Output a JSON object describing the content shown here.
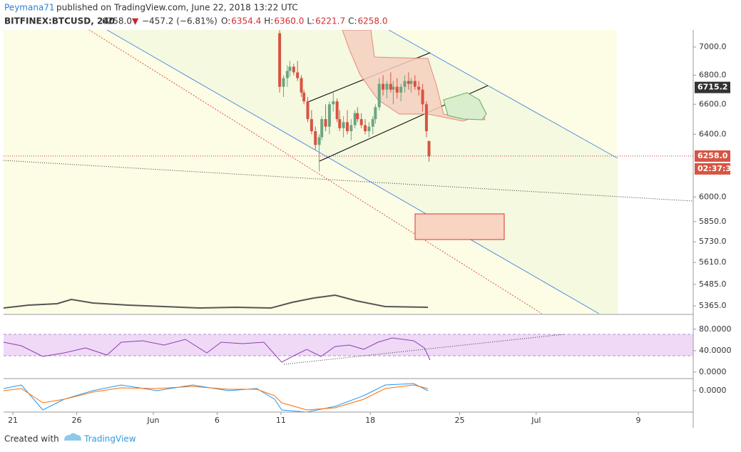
{
  "header": {
    "author": "Peymana71",
    "published": "published on TradingView.com, June 22, 2018 13:22 UTC",
    "symbol": "BITFINEX:BTCUSD, 240",
    "last": "6258.0",
    "arrow": "▼",
    "change": "−457.2 (−6.81%)",
    "ohlc": [
      {
        "key": "O:",
        "val": "6354.4"
      },
      {
        "key": "H:",
        "val": "6360.0"
      },
      {
        "key": "L:",
        "val": "6221.7"
      },
      {
        "key": "C:",
        "val": "6258.0"
      }
    ]
  },
  "chart_data": {
    "type": "candlestick",
    "log_scale": true,
    "up_color": "#6ba583",
    "down_color": "#d75442",
    "x": [
      20.9,
      21.2,
      21.5,
      21.7,
      22.0,
      22.3,
      22.6,
      22.8,
      23.1,
      23.4,
      23.7,
      24.0,
      24.2,
      24.5,
      24.8,
      25.1,
      25.4,
      25.6,
      25.9,
      26.2,
      26.5,
      26.8,
      27.0,
      27.3,
      27.6,
      27.9,
      28.2,
      28.4,
      28.7,
      29.0,
      29.3,
      29.6,
      29.8,
      30.1,
      30.4,
      30.7,
      31.0,
      31.2,
      31.5,
      31.8,
      32.1,
      32.4,
      32.6
    ],
    "open": [
      7100,
      6720,
      6780,
      6830,
      6860,
      6820,
      6780,
      6680,
      6620,
      6500,
      6420,
      6330,
      6380,
      6500,
      6450,
      6600,
      6620,
      6500,
      6440,
      6480,
      6420,
      6460,
      6540,
      6500,
      6460,
      6420,
      6450,
      6500,
      6580,
      6740,
      6700,
      6740,
      6700,
      6720,
      6680,
      6720,
      6760,
      6740,
      6760,
      6720,
      6700,
      6600,
      6354.4
    ],
    "high": [
      7140,
      6800,
      6870,
      6900,
      6880,
      6900,
      6800,
      6700,
      6650,
      6560,
      6450,
      6400,
      6520,
      6600,
      6620,
      6680,
      6640,
      6560,
      6520,
      6560,
      6500,
      6560,
      6580,
      6540,
      6500,
      6480,
      6520,
      6600,
      6780,
      6800,
      6760,
      6820,
      6760,
      6780,
      6740,
      6800,
      6820,
      6780,
      6800,
      6760,
      6740,
      6620,
      6360
    ],
    "low": [
      6680,
      6650,
      6720,
      6790,
      6800,
      6760,
      6650,
      6600,
      6480,
      6400,
      6300,
      6160,
      6360,
      6420,
      6400,
      6550,
      6480,
      6420,
      6380,
      6400,
      6360,
      6440,
      6480,
      6440,
      6400,
      6380,
      6400,
      6470,
      6560,
      6660,
      6640,
      6680,
      6600,
      6640,
      6620,
      6680,
      6700,
      6680,
      6700,
      6660,
      6550,
      6380,
      6221.7
    ],
    "close": [
      6720,
      6780,
      6830,
      6860,
      6820,
      6780,
      6680,
      6620,
      6500,
      6420,
      6330,
      6380,
      6500,
      6450,
      6600,
      6620,
      6500,
      6440,
      6480,
      6420,
      6460,
      6540,
      6500,
      6460,
      6420,
      6450,
      6500,
      6580,
      6740,
      6700,
      6740,
      6700,
      6720,
      6680,
      6720,
      6760,
      6740,
      6760,
      6720,
      6700,
      6600,
      6420,
      6258.0
    ],
    "xlim": [
      -0.73,
      53.3
    ],
    "xticks": [
      {
        "value": 0,
        "label": "21"
      },
      {
        "value": 5,
        "label": "26"
      },
      {
        "value": 11,
        "label": "Jun"
      },
      {
        "value": 16,
        "label": "6"
      },
      {
        "value": 21,
        "label": "11"
      },
      {
        "value": 28,
        "label": "18"
      },
      {
        "value": 35,
        "label": "25"
      },
      {
        "value": 41,
        "label": "Jul"
      },
      {
        "value": 49,
        "label": "9"
      }
    ],
    "ylim": [
      5322,
      7124
    ],
    "yticks": [
      {
        "value": 7000,
        "label": "7000.0"
      },
      {
        "value": 6800,
        "label": "6800.0"
      },
      {
        "value": 6600,
        "label": "6600.0"
      },
      {
        "value": 6400,
        "label": "6400.0"
      },
      {
        "value": 6000,
        "label": "6000.0"
      },
      {
        "value": 5850,
        "label": "5850.0"
      },
      {
        "value": 5730,
        "label": "5730.0"
      },
      {
        "value": 5610,
        "label": "5610.0"
      },
      {
        "value": 5485,
        "label": "5485.0"
      },
      {
        "value": 5365,
        "label": "5365.0"
      }
    ],
    "marker": 6715.2,
    "current": {
      "value": 6258,
      "label": "6258.0"
    },
    "countdown": "02:37:36",
    "rsi": {
      "ylim": [
        -10.7,
        105
      ],
      "yticks": [
        {
          "value": 80,
          "label": "80.0000"
        },
        {
          "value": 40,
          "label": "40.0000"
        },
        {
          "value": 0,
          "label": "0.0000"
        }
      ]
    },
    "macd": {
      "ylim": [
        -300,
        150
      ],
      "yticks": [
        {
          "value": 0,
          "label": "0.0000"
        }
      ]
    }
  },
  "footer": {
    "created": "Created with",
    "brand": "TradingView"
  }
}
